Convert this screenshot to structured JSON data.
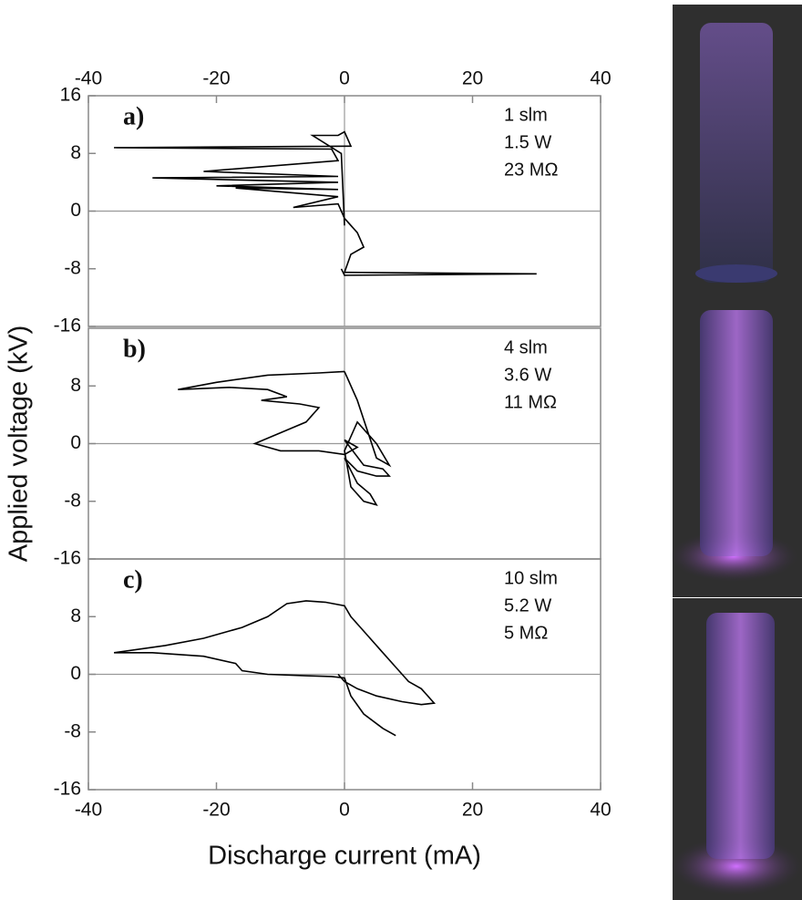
{
  "chart_data": [
    {
      "type": "line",
      "label": "a)",
      "annotations": [
        "1 slm",
        "1.5 W",
        "23 MΩ"
      ],
      "xlim": [
        -40,
        40
      ],
      "ylim": [
        -16,
        16
      ],
      "xticks": [
        -40,
        -20,
        0,
        20,
        40
      ],
      "yticks": [
        -16,
        -8,
        0,
        8,
        16
      ],
      "xaxis": "top",
      "zero_lines": true,
      "x": [
        0,
        -0.5,
        -5,
        -1,
        0,
        1,
        -36,
        -2,
        -1,
        -22,
        -1,
        -30,
        -1,
        -20,
        -1,
        -17,
        -1,
        -8,
        -1,
        0,
        2,
        3,
        1,
        0,
        30,
        0,
        -0.5
      ],
      "series": [
        {
          "color": "#000000",
          "values": [
            -2,
            8,
            10.5,
            10.5,
            11,
            9,
            8.8,
            8.6,
            7,
            5.5,
            4.8,
            4.6,
            4,
            3.5,
            3,
            3.2,
            2,
            0.5,
            1,
            -1,
            -3,
            -5,
            -6,
            -8.5,
            -8.7,
            -8.9,
            -8
          ]
        }
      ]
    },
    {
      "type": "line",
      "label": "b)",
      "annotations": [
        "4 slm",
        "3.6 W",
        "11 MΩ"
      ],
      "xlim": [
        -40,
        40
      ],
      "ylim": [
        -16,
        16
      ],
      "yticks": [
        -16,
        -8,
        0,
        8
      ],
      "zero_lines": true,
      "ylabel": "Applied voltage (kV)",
      "x": [
        0,
        -4,
        -12,
        -20,
        -26,
        -18,
        -12,
        -9,
        -13,
        -7,
        -4,
        -6,
        -10,
        -14,
        -10,
        -4,
        0,
        2,
        0,
        3,
        6,
        7,
        5,
        2,
        0,
        2,
        4,
        5,
        3,
        1,
        0,
        2,
        5,
        7,
        5,
        2,
        0
      ],
      "series": [
        {
          "color": "#000000",
          "values": [
            10,
            9.8,
            9.5,
            8.5,
            7.5,
            7.8,
            7.5,
            6.5,
            6,
            5.5,
            5,
            3,
            1.5,
            0,
            -1,
            -1,
            -1.5,
            -0.5,
            0.5,
            -3,
            -3.5,
            -4.5,
            -4.5,
            -3.8,
            -2,
            -5.5,
            -7,
            -8.5,
            -8,
            -6,
            -1,
            3,
            0,
            -3,
            -2,
            6,
            10
          ]
        }
      ]
    },
    {
      "type": "line",
      "label": "c)",
      "annotations": [
        "10 slm",
        "5.2 W",
        "5 MΩ"
      ],
      "xlim": [
        -40,
        40
      ],
      "ylim": [
        -16,
        16
      ],
      "xticks": [
        -40,
        -20,
        0,
        20,
        40
      ],
      "yticks": [
        -16,
        -8,
        0,
        8
      ],
      "xaxis": "bottom",
      "zero_lines": true,
      "xlabel": "Discharge current (mA)",
      "x": [
        8,
        6,
        3,
        1,
        0,
        -2,
        -6,
        -12,
        -16,
        -17,
        -22,
        -30,
        -36,
        -28,
        -22,
        -16,
        -12,
        -9,
        -6,
        -3,
        0,
        1,
        3,
        6,
        8,
        10,
        12,
        14,
        12,
        9,
        5,
        2,
        0,
        -1
      ],
      "series": [
        {
          "color": "#000000",
          "values": [
            -8.5,
            -7.5,
            -5.5,
            -3,
            -0.5,
            -0.3,
            -0.2,
            0,
            0.5,
            1.5,
            2.5,
            3,
            3,
            4,
            5,
            6.5,
            8,
            9.8,
            10.2,
            10,
            9.5,
            8,
            6,
            3,
            1,
            -1,
            -2,
            -4,
            -4.2,
            -3.8,
            -3,
            -2,
            -1,
            0
          ]
        }
      ]
    }
  ]
}
